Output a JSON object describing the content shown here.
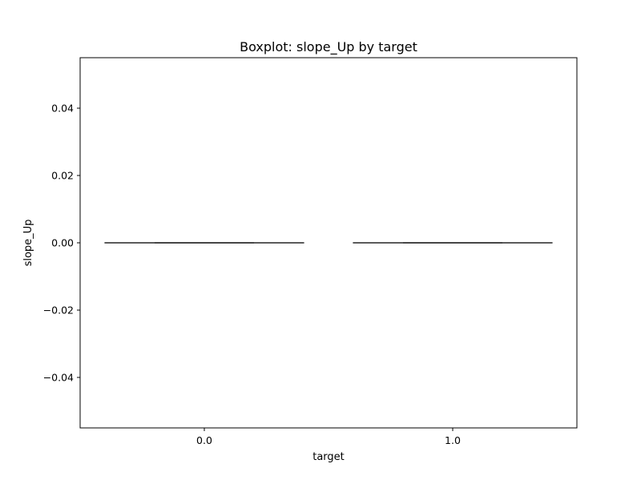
{
  "chart_data": {
    "type": "boxplot",
    "title": "Boxplot: slope_Up by target",
    "xlabel": "target",
    "ylabel": "slope_Up",
    "categories": [
      "0.0",
      "1.0"
    ],
    "boxes": [
      {
        "category": "0.0",
        "min": 0.0,
        "q1": 0.0,
        "median": 0.0,
        "q3": 0.0,
        "max": 0.0
      },
      {
        "category": "1.0",
        "min": 0.0,
        "q1": 0.0,
        "median": 0.0,
        "q3": 0.0,
        "max": 0.0
      }
    ],
    "ylim": [
      -0.055,
      0.055
    ],
    "yticks": [
      -0.04,
      -0.02,
      0.0,
      0.02,
      0.04
    ],
    "ytick_labels": [
      "−0.04",
      "−0.02",
      "0.00",
      "0.02",
      "0.04"
    ],
    "grid": false,
    "colors": {
      "box_line": "#3f3f3f",
      "axis": "#000000"
    }
  }
}
